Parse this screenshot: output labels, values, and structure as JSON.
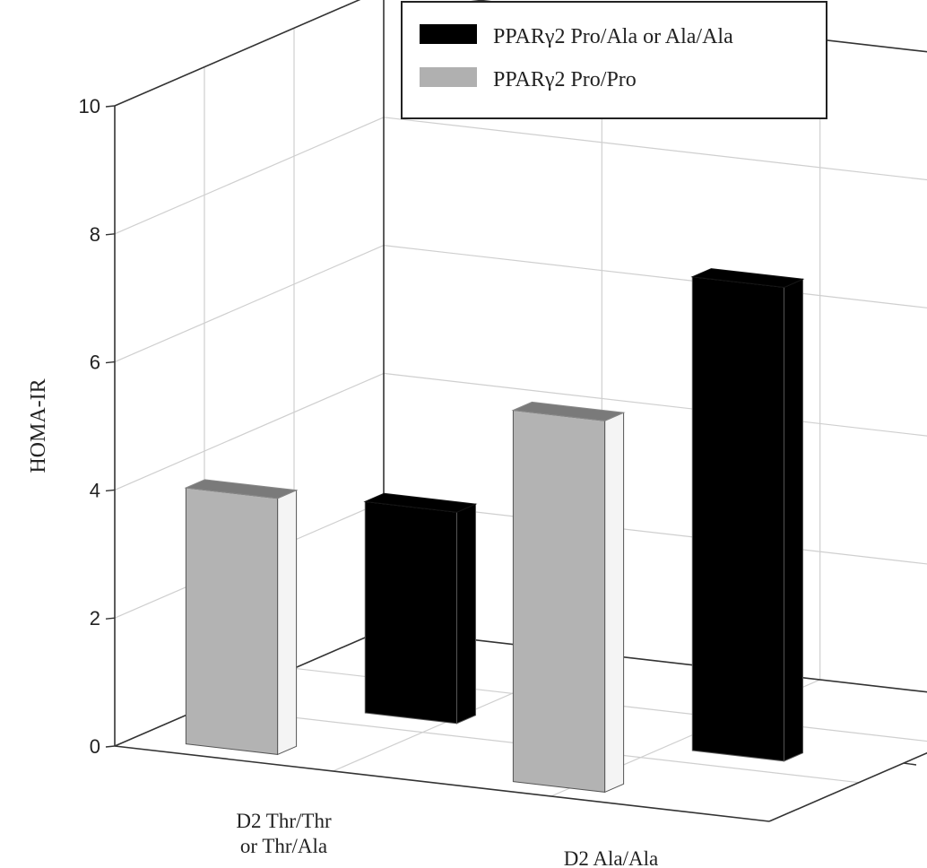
{
  "chart_data": {
    "type": "bar",
    "title": "",
    "ylabel": "HOMA-IR",
    "xlabel": "",
    "categories": [
      "D2 Thr/Thr or Thr/Ala",
      "D2 Ala/Ala"
    ],
    "category_label_lines": [
      [
        "D2 Thr/Thr",
        "or Thr/Ala"
      ],
      [
        "D2 Ala/Ala"
      ]
    ],
    "series": [
      {
        "name": "PPARγ2 Pro/Ala or Ala/Ala",
        "values": [
          3.3,
          7.4
        ],
        "color": "#000000"
      },
      {
        "name": "PPARγ2 Pro/Pro",
        "values": [
          4.0,
          5.8
        ],
        "color": "#b0b0b0"
      }
    ],
    "ylim": [
      0,
      10
    ],
    "yticks": [
      0,
      2,
      4,
      6,
      8,
      10
    ],
    "grid": true,
    "legend_position": "top-right",
    "style": "3d"
  }
}
